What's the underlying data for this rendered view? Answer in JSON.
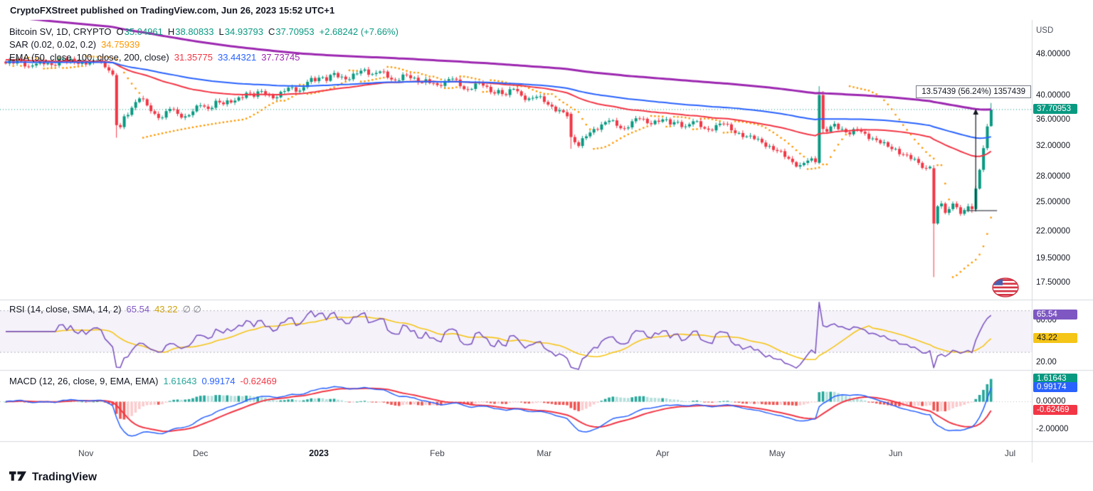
{
  "header": {
    "attribution": "CryptoFXStreet published on TradingView.com, Jun 26, 2023 15:52 UTC+1"
  },
  "footer": {
    "brand": "TradingView"
  },
  "legends": {
    "main": {
      "title": "Bitcoin SV, 1D, CRYPTO",
      "ohlc": [
        [
          "O",
          "35.04961"
        ],
        [
          "H",
          "38.80833"
        ],
        [
          "L",
          "34.93793"
        ],
        [
          "C",
          "37.70953"
        ]
      ],
      "change": "+2.68242 (+7.66%)"
    },
    "sar": {
      "name": "SAR (0.02, 0.02, 0.2)",
      "value": "34.75939",
      "color": "#ff9800"
    },
    "ema": {
      "name": "EMA (50, close, 100, close, 200, close)",
      "values": [
        {
          "text": "31.35775",
          "color": "#f23645"
        },
        {
          "text": "33.44321",
          "color": "#2962ff"
        },
        {
          "text": "37.73745",
          "color": "#9c27b0"
        }
      ]
    },
    "rsi": {
      "name": "RSI (14, close, SMA, 14, 2)",
      "values": [
        {
          "text": "65.54",
          "color": "#7e57c2"
        },
        {
          "text": "43.22",
          "color": "#cfa20b"
        },
        {
          "text": "∅ ∅",
          "color": "#787b86"
        }
      ]
    },
    "macd": {
      "name": "MACD (12, 26, close, 9, EMA, EMA)",
      "values": [
        {
          "text": "1.61643",
          "color": "#26a69a"
        },
        {
          "text": "0.99174",
          "color": "#2962ff"
        },
        {
          "text": "-0.62469",
          "color": "#f23645"
        }
      ]
    }
  },
  "badges": {
    "price": {
      "text": "37.70953",
      "value": 37.70953,
      "bg": "#089981",
      "fg": "#ffffff"
    },
    "rsi": [
      {
        "text": "65.54",
        "value": 65.54,
        "bg": "#7e57c2",
        "fg": "#ffffff"
      },
      {
        "text": "43.22",
        "value": 43.22,
        "bg": "#f5c518",
        "fg": "#131722"
      }
    ],
    "macd": [
      {
        "text": "1.61643",
        "value": 1.61643,
        "bg": "#089981",
        "fg": "#ffffff"
      },
      {
        "text": "0.99174",
        "value": 0.99174,
        "bg": "#2962ff",
        "fg": "#ffffff"
      },
      {
        "text": "-0.62469",
        "value": -0.62469,
        "bg": "#f23645",
        "fg": "#ffffff"
      }
    ]
  },
  "annotation": {
    "label": "13.57439 (56.24%) 1357439",
    "from_price": 24.13514,
    "to_price": 37.70953,
    "bar_index": 254
  },
  "chart_data": {
    "type": "candlestick",
    "symbol": "Bitcoin SV",
    "interval": "1D",
    "exchange": "CRYPTO",
    "currency": "USD",
    "ohlc_last": {
      "open": 35.04961,
      "high": 38.80833,
      "low": 34.93793,
      "close": 37.70953,
      "change": "+2.68242",
      "change_pct": "+7.66%"
    },
    "x": {
      "count": 259,
      "slots": 268,
      "time_ticks": [
        {
          "label": "Nov",
          "index": 21
        },
        {
          "label": "Dec",
          "index": 51
        },
        {
          "label": "2023",
          "index": 82,
          "bold": true
        },
        {
          "label": "Feb",
          "index": 113
        },
        {
          "label": "Mar",
          "index": 141
        },
        {
          "label": "Apr",
          "index": 172
        },
        {
          "label": "May",
          "index": 202
        },
        {
          "label": "Jun",
          "index": 233
        },
        {
          "label": "Jul",
          "index": 263
        }
      ]
    },
    "panels": {
      "main": {
        "scale": "log",
        "ylim": [
          16.3,
          56.0
        ],
        "price_ticks": [
          {
            "label": "48.00000",
            "value": 48
          },
          {
            "label": "40.00000",
            "value": 40
          },
          {
            "label": "36.00000",
            "value": 36
          },
          {
            "label": "32.00000",
            "value": 32
          },
          {
            "label": "28.00000",
            "value": 28
          },
          {
            "label": "25.00000",
            "value": 25
          },
          {
            "label": "22.00000",
            "value": 22
          },
          {
            "label": "19.50000",
            "value": 19.5
          },
          {
            "label": "17.50000",
            "value": 17.5
          }
        ]
      },
      "rsi": {
        "ylim": [
          13,
          80
        ],
        "ticks": [
          {
            "label": "60.00",
            "value": 60
          },
          {
            "label": "20.00",
            "value": 20
          }
        ]
      },
      "macd": {
        "ylim": [
          -2.8,
          2.2
        ],
        "ticks": [
          {
            "label": "0.00000",
            "value": 0
          },
          {
            "label": "-2.00000",
            "value": -2
          }
        ]
      }
    },
    "candles": {
      "colors": {
        "up": "#089981",
        "down": "#f23645"
      },
      "noise": 0.5,
      "close_anchors": [
        [
          0,
          46.2
        ],
        [
          3,
          47.0
        ],
        [
          6,
          45.6
        ],
        [
          9,
          46.8
        ],
        [
          12,
          45.9
        ],
        [
          15,
          47.2
        ],
        [
          18,
          46.4
        ],
        [
          21,
          46.0
        ],
        [
          24,
          46.9
        ],
        [
          27,
          44.8
        ],
        [
          28,
          44.0
        ],
        [
          29,
          35.2
        ],
        [
          30,
          34.9
        ],
        [
          31,
          36.6
        ],
        [
          33,
          38.0
        ],
        [
          35,
          39.6
        ],
        [
          37,
          38.4
        ],
        [
          39,
          37.0
        ],
        [
          41,
          36.4
        ],
        [
          43,
          37.8
        ],
        [
          45,
          37.0
        ],
        [
          47,
          36.6
        ],
        [
          49,
          37.4
        ],
        [
          51,
          38.4
        ],
        [
          53,
          37.8
        ],
        [
          55,
          39.2
        ],
        [
          57,
          38.6
        ],
        [
          59,
          38.9
        ],
        [
          61,
          39.8
        ],
        [
          63,
          40.6
        ],
        [
          65,
          39.9
        ],
        [
          67,
          40.9
        ],
        [
          69,
          40.2
        ],
        [
          71,
          39.8
        ],
        [
          73,
          40.9
        ],
        [
          75,
          41.6
        ],
        [
          77,
          41.0
        ],
        [
          79,
          42.6
        ],
        [
          82,
          43.4
        ],
        [
          84,
          42.8
        ],
        [
          86,
          44.3
        ],
        [
          88,
          43.6
        ],
        [
          90,
          43.1
        ],
        [
          92,
          44.2
        ],
        [
          94,
          45.0
        ],
        [
          96,
          44.1
        ],
        [
          98,
          44.6
        ],
        [
          100,
          43.4
        ],
        [
          102,
          42.9
        ],
        [
          104,
          44.0
        ],
        [
          106,
          43.3
        ],
        [
          108,
          42.5
        ],
        [
          110,
          43.1
        ],
        [
          113,
          42.0
        ],
        [
          115,
          42.8
        ],
        [
          117,
          43.2
        ],
        [
          119,
          41.8
        ],
        [
          121,
          41.2
        ],
        [
          123,
          42.3
        ],
        [
          125,
          41.9
        ],
        [
          127,
          40.7
        ],
        [
          129,
          41.1
        ],
        [
          131,
          40.2
        ],
        [
          133,
          41.3
        ],
        [
          135,
          40.1
        ],
        [
          137,
          39.6
        ],
        [
          139,
          39.9
        ],
        [
          141,
          39.0
        ],
        [
          143,
          38.2
        ],
        [
          145,
          37.6
        ],
        [
          147,
          36.6
        ],
        [
          148,
          33.4
        ],
        [
          150,
          32.1
        ],
        [
          152,
          33.5
        ],
        [
          154,
          34.6
        ],
        [
          156,
          35.3
        ],
        [
          158,
          35.9
        ],
        [
          160,
          35.1
        ],
        [
          162,
          34.7
        ],
        [
          164,
          35.8
        ],
        [
          166,
          36.2
        ],
        [
          168,
          35.5
        ],
        [
          170,
          35.9
        ],
        [
          172,
          36.1
        ],
        [
          174,
          35.3
        ],
        [
          176,
          35.7
        ],
        [
          178,
          35.0
        ],
        [
          180,
          35.8
        ],
        [
          182,
          34.9
        ],
        [
          184,
          34.5
        ],
        [
          186,
          35.2
        ],
        [
          188,
          35.4
        ],
        [
          190,
          34.4
        ],
        [
          192,
          34.0
        ],
        [
          194,
          33.5
        ],
        [
          196,
          33.1
        ],
        [
          198,
          32.6
        ],
        [
          200,
          32.1
        ],
        [
          202,
          31.4
        ],
        [
          204,
          30.6
        ],
        [
          206,
          29.9
        ],
        [
          208,
          29.5
        ],
        [
          210,
          30.1
        ],
        [
          212,
          29.9
        ],
        [
          213,
          40.2
        ],
        [
          214,
          34.6
        ],
        [
          215,
          34.2
        ],
        [
          217,
          35.4
        ],
        [
          219,
          34.6
        ],
        [
          221,
          33.8
        ],
        [
          223,
          34.5
        ],
        [
          225,
          33.9
        ],
        [
          227,
          33.2
        ],
        [
          229,
          32.5
        ],
        [
          231,
          32.0
        ],
        [
          233,
          31.7
        ],
        [
          235,
          30.9
        ],
        [
          237,
          30.3
        ],
        [
          239,
          29.8
        ],
        [
          241,
          29.1
        ],
        [
          242,
          29.3
        ],
        [
          243,
          22.8
        ],
        [
          244,
          24.6
        ],
        [
          245,
          24.9
        ],
        [
          246,
          23.9
        ],
        [
          247,
          24.3
        ],
        [
          248,
          24.9
        ],
        [
          249,
          24.5
        ],
        [
          250,
          23.8
        ],
        [
          251,
          24.2
        ],
        [
          252,
          24.6
        ],
        [
          253,
          24.3
        ],
        [
          254,
          26.6
        ],
        [
          255,
          28.9
        ],
        [
          256,
          31.8
        ],
        [
          257,
          35.0
        ],
        [
          258,
          37.70953
        ]
      ],
      "overrides": [
        {
          "i": 29,
          "o": 43.9,
          "h": 44.3,
          "l": 33.3,
          "c": 35.2
        },
        {
          "i": 148,
          "o": 37.0,
          "h": 37.3,
          "l": 31.7,
          "c": 33.4
        },
        {
          "i": 213,
          "o": 29.8,
          "h": 41.8,
          "l": 29.6,
          "c": 40.2
        },
        {
          "i": 214,
          "o": 40.2,
          "h": 40.9,
          "l": 33.9,
          "c": 34.6
        },
        {
          "i": 243,
          "o": 29.1,
          "h": 29.5,
          "l": 18.0,
          "c": 22.8
        },
        {
          "i": 253,
          "o": 24.6,
          "h": 24.9,
          "l": 23.9,
          "c": 24.3
        },
        {
          "i": 256,
          "o": 28.9,
          "h": 32.2,
          "l": 28.6,
          "c": 31.8
        },
        {
          "i": 257,
          "o": 31.8,
          "h": 35.4,
          "l": 31.5,
          "c": 35.0
        },
        {
          "i": 258,
          "o": 35.04961,
          "h": 38.80833,
          "l": 34.93793,
          "c": 37.70953
        }
      ]
    },
    "indicators": {
      "sar": {
        "params": [
          0.02,
          0.02,
          0.2
        ],
        "last": 34.75939,
        "color": "#ff9800"
      },
      "ema": {
        "periods": [
          50,
          100,
          200
        ],
        "last": [
          31.35775,
          33.44321,
          37.73745
        ],
        "colors": [
          "#f23645",
          "#2962ff",
          "#9c27b0"
        ],
        "seeds": {
          "ema50": 47.0,
          "ema100": 46.5,
          "ema200": 57.0
        }
      },
      "rsi": {
        "period": 14,
        "smoothing": "SMA 14",
        "last": 65.54,
        "sma_last": 43.22,
        "band": [
          70,
          30
        ],
        "line_color": "#7e57c2",
        "sma_color": "#f5c518"
      },
      "macd": {
        "fast": 12,
        "slow": 26,
        "signal": 9,
        "macd_last": 0.99174,
        "signal_last": -0.62469,
        "hist_last": 1.61643,
        "colors": {
          "macd": "#2962ff",
          "signal": "#f23645",
          "hist_up": "#26a69a",
          "hist_up_fade": "#b2dfdb",
          "hist_dn": "#ef5350",
          "hist_dn_fade": "#fccbcd"
        }
      }
    }
  }
}
